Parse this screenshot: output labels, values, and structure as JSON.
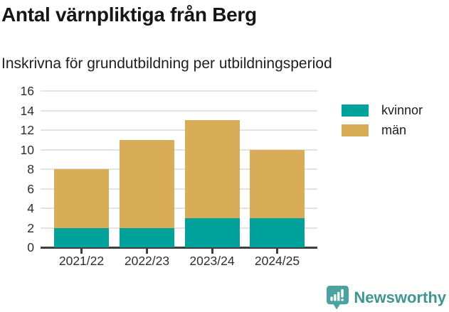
{
  "header": {
    "title": "Antal värnpliktiga från Berg",
    "subtitle": "Inskrivna för grundutbildning per utbildningsperiod"
  },
  "chart_data": {
    "type": "bar",
    "stacked": true,
    "title": "Antal värnpliktiga från Berg",
    "subtitle": "Inskrivna för grundutbildning per utbildningsperiod",
    "categories": [
      "2021/22",
      "2022/23",
      "2023/24",
      "2024/25"
    ],
    "series": [
      {
        "name": "kvinnor",
        "color": "#00A29B",
        "values": [
          2,
          2,
          3,
          3
        ]
      },
      {
        "name": "män",
        "color": "#D9AC57",
        "values": [
          6,
          9,
          10,
          7
        ]
      }
    ],
    "stacked_totals": [
      8,
      11,
      13,
      10
    ],
    "xlabel": "",
    "ylabel": "",
    "ylim": [
      0,
      16
    ],
    "yticks": [
      0,
      2,
      4,
      6,
      8,
      10,
      12,
      14,
      16
    ],
    "grid": true,
    "legend_position": "top-right"
  },
  "footer": {
    "brand": "Newsworthy",
    "logo_icon": "newsworthy-chart-bubble-icon"
  },
  "colors": {
    "kvinnor": "#00A29B",
    "man": "#D9AC57",
    "brand_teal": "#3d9694",
    "logo_teal": "#4BA3A0",
    "axis": "#3f3f3f",
    "gridline": "#e3e3e3"
  }
}
